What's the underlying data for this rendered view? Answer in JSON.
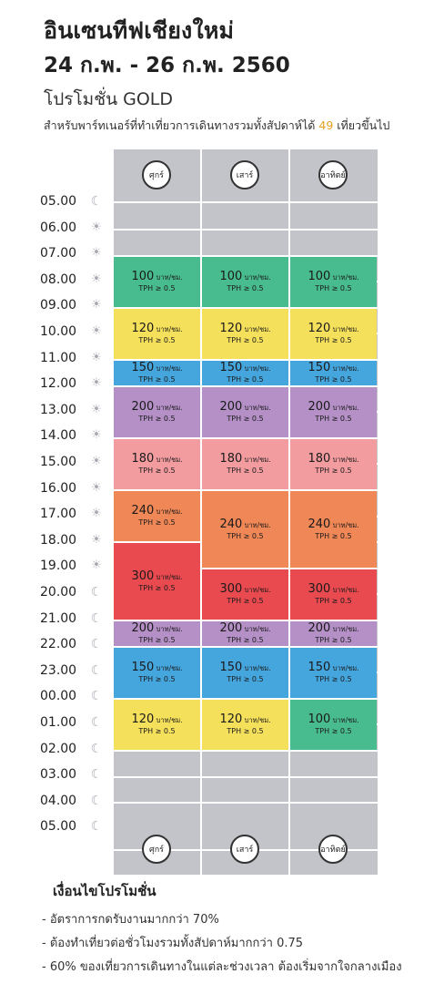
{
  "header": {
    "title": "อินเซนทีฟเชียงใหม่",
    "dates": "24 ก.พ. - 26 ก.พ. 2560",
    "promo": "โปรโมชั่น GOLD",
    "subtitle_before": "สำหรับพาร์ทเนอร์ที่ทำเที่ยวการเดินทางรวมทั้งสัปดาห์ได้ ",
    "subtitle_number": "49",
    "subtitle_after": " เที่ยวขึ้นไป"
  },
  "days": [
    "ศุกร์",
    "เสาร์",
    "อาทิตย์"
  ],
  "times": [
    {
      "label": "05.00",
      "icon": "moon-icon"
    },
    {
      "label": "06.00",
      "icon": "sun-icon"
    },
    {
      "label": "07.00",
      "icon": "sun-icon"
    },
    {
      "label": "08.00",
      "icon": "sun-icon"
    },
    {
      "label": "09.00",
      "icon": "sun-icon"
    },
    {
      "label": "10.00",
      "icon": "sun-icon"
    },
    {
      "label": "11.00",
      "icon": "sun-icon"
    },
    {
      "label": "12.00",
      "icon": "sun-icon"
    },
    {
      "label": "13.00",
      "icon": "sun-icon"
    },
    {
      "label": "14.00",
      "icon": "sun-icon"
    },
    {
      "label": "15.00",
      "icon": "sun-icon"
    },
    {
      "label": "16.00",
      "icon": "sun-icon"
    },
    {
      "label": "17.00",
      "icon": "sun-icon"
    },
    {
      "label": "18.00",
      "icon": "sun-icon"
    },
    {
      "label": "19.00",
      "icon": "sun-icon"
    },
    {
      "label": "20.00",
      "icon": "moon-icon"
    },
    {
      "label": "21.00",
      "icon": "moon-icon"
    },
    {
      "label": "22.00",
      "icon": "moon-icon"
    },
    {
      "label": "23.00",
      "icon": "moon-icon"
    },
    {
      "label": "00.00",
      "icon": "moon-icon"
    },
    {
      "label": "01.00",
      "icon": "moon-icon"
    },
    {
      "label": "02.00",
      "icon": "moon-icon"
    },
    {
      "label": "03.00",
      "icon": "moon-icon"
    },
    {
      "label": "04.00",
      "icon": "moon-icon"
    },
    {
      "label": "05.00",
      "icon": "moon-icon"
    }
  ],
  "unit": "บาท/ชม.",
  "tph": "TPH ≥ 0.5",
  "colors": {
    "green": "#48bb8f",
    "yellow": "#f5e05c",
    "blue": "#45a5dd",
    "purple": "#b490c6",
    "pink": "#f29ca0",
    "orange": "#f08756",
    "red": "#e84a4f",
    "grey": "#c3c4ca"
  },
  "rates": [
    {
      "day": 0,
      "start": 2,
      "end": 4,
      "price": "100",
      "color": "green"
    },
    {
      "day": 0,
      "start": 4,
      "end": 6,
      "price": "120",
      "color": "yellow"
    },
    {
      "day": 0,
      "start": 6,
      "end": 7,
      "price": "150",
      "color": "blue"
    },
    {
      "day": 0,
      "start": 7,
      "end": 9,
      "price": "200",
      "color": "purple"
    },
    {
      "day": 0,
      "start": 9,
      "end": 11,
      "price": "180",
      "color": "pink"
    },
    {
      "day": 0,
      "start": 11,
      "end": 13,
      "price": "240",
      "color": "orange"
    },
    {
      "day": 0,
      "start": 13,
      "end": 16,
      "price": "300",
      "color": "red"
    },
    {
      "day": 0,
      "start": 16,
      "end": 17,
      "price": "200",
      "color": "purple"
    },
    {
      "day": 0,
      "start": 17,
      "end": 19,
      "price": "150",
      "color": "blue"
    },
    {
      "day": 0,
      "start": 19,
      "end": 21,
      "price": "120",
      "color": "yellow"
    },
    {
      "day": 1,
      "start": 2,
      "end": 4,
      "price": "100",
      "color": "green"
    },
    {
      "day": 1,
      "start": 4,
      "end": 6,
      "price": "120",
      "color": "yellow"
    },
    {
      "day": 1,
      "start": 6,
      "end": 7,
      "price": "150",
      "color": "blue"
    },
    {
      "day": 1,
      "start": 7,
      "end": 9,
      "price": "200",
      "color": "purple"
    },
    {
      "day": 1,
      "start": 9,
      "end": 11,
      "price": "180",
      "color": "pink"
    },
    {
      "day": 1,
      "start": 11,
      "end": 14,
      "price": "240",
      "color": "orange"
    },
    {
      "day": 1,
      "start": 14,
      "end": 16,
      "price": "300",
      "color": "red"
    },
    {
      "day": 1,
      "start": 16,
      "end": 17,
      "price": "200",
      "color": "purple"
    },
    {
      "day": 1,
      "start": 17,
      "end": 19,
      "price": "150",
      "color": "blue"
    },
    {
      "day": 1,
      "start": 19,
      "end": 21,
      "price": "120",
      "color": "yellow"
    },
    {
      "day": 2,
      "start": 2,
      "end": 4,
      "price": "100",
      "color": "green"
    },
    {
      "day": 2,
      "start": 4,
      "end": 6,
      "price": "120",
      "color": "yellow"
    },
    {
      "day": 2,
      "start": 6,
      "end": 7,
      "price": "150",
      "color": "blue"
    },
    {
      "day": 2,
      "start": 7,
      "end": 9,
      "price": "200",
      "color": "purple"
    },
    {
      "day": 2,
      "start": 9,
      "end": 11,
      "price": "180",
      "color": "pink"
    },
    {
      "day": 2,
      "start": 11,
      "end": 14,
      "price": "240",
      "color": "orange"
    },
    {
      "day": 2,
      "start": 14,
      "end": 16,
      "price": "300",
      "color": "red"
    },
    {
      "day": 2,
      "start": 16,
      "end": 17,
      "price": "200",
      "color": "purple"
    },
    {
      "day": 2,
      "start": 17,
      "end": 19,
      "price": "150",
      "color": "blue"
    },
    {
      "day": 2,
      "start": 19,
      "end": 21,
      "price": "100",
      "color": "green"
    }
  ],
  "conditions": {
    "title": "เงื่อนไขโปรโมชั่น",
    "items": [
      "- อัตราการกดรับงานมากกว่า 70%",
      "- ต้องทำเที่ยวต่อชั่วโมงรวมทั้งสัปดาห์มากกว่า 0.75",
      "- 60% ของเที่ยวการเดินทางในแต่ละช่วงเวลา ต้องเริ่มจากใจกลางเมือง"
    ]
  }
}
